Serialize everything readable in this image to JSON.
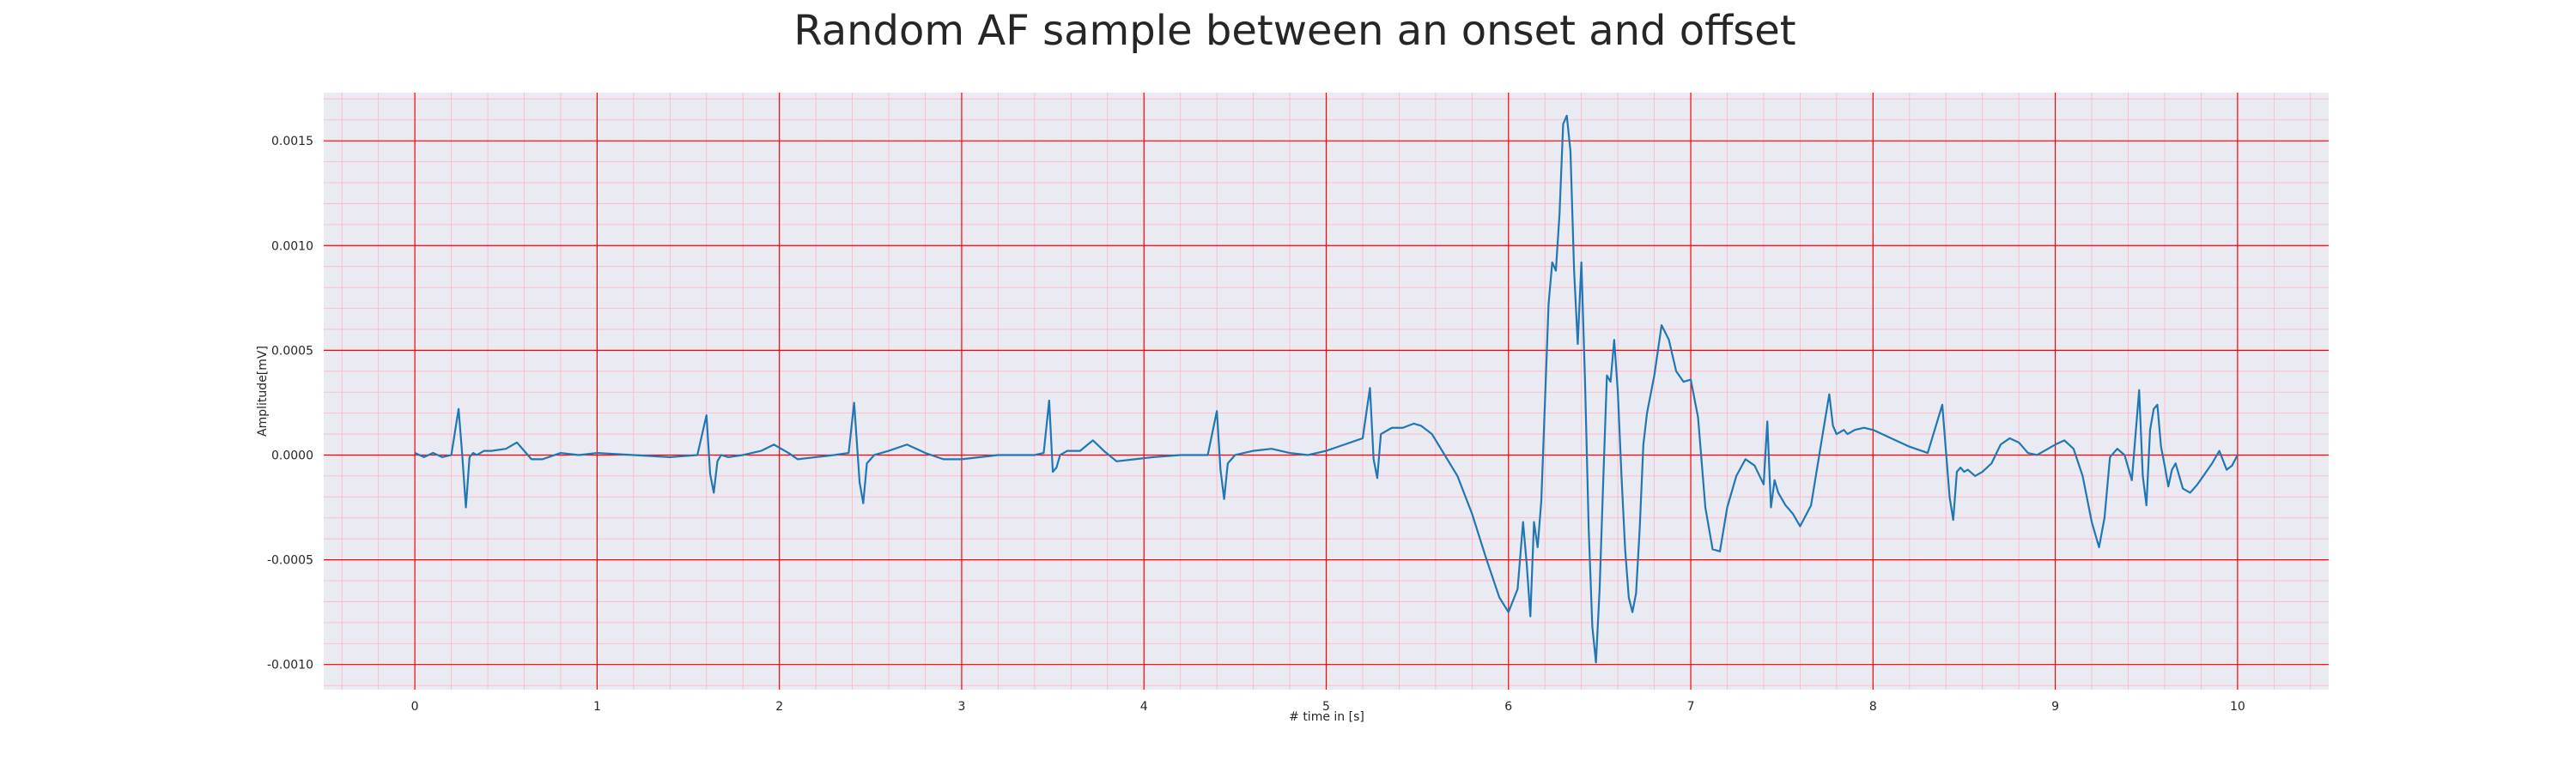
{
  "chart_data": {
    "type": "line",
    "title": "Random AF sample between an onset and offset",
    "xlabel": "# time in [s]",
    "ylabel": "Amplitude[mV]",
    "xlim": [
      -0.5,
      10.5
    ],
    "ylim": [
      -0.00112,
      0.00173
    ],
    "x_major_ticks": [
      0,
      1,
      2,
      3,
      4,
      5,
      6,
      7,
      8,
      9,
      10
    ],
    "x_tick_labels": [
      "0",
      "1",
      "2",
      "3",
      "4",
      "5",
      "6",
      "7",
      "8",
      "9",
      "10"
    ],
    "y_major_ticks": [
      -0.001,
      -0.0005,
      0.0,
      0.0005,
      0.001,
      0.0015
    ],
    "y_tick_labels": [
      "-0.0010",
      "-0.0005",
      "0.0000",
      "0.0005",
      "0.0010",
      "0.0015"
    ],
    "x_minor_step": 0.2,
    "y_minor_step": 0.0001,
    "grid": true,
    "colors": {
      "background": "#eaeaf2",
      "major_grid": "#ff0000",
      "minor_grid": "#ffb6c1",
      "line": "#1f77b4"
    },
    "series": [
      {
        "x": [
          0.0,
          0.05,
          0.1,
          0.15,
          0.2,
          0.24,
          0.26,
          0.28,
          0.3,
          0.32,
          0.34,
          0.38,
          0.42,
          0.5,
          0.56,
          0.6,
          0.64,
          0.7,
          0.8,
          0.9,
          1.0,
          1.2,
          1.4,
          1.55,
          1.6,
          1.62,
          1.64,
          1.66,
          1.68,
          1.72,
          1.8,
          1.9,
          1.97,
          2.05,
          2.1,
          2.2,
          2.3,
          2.38,
          2.41,
          2.44,
          2.46,
          2.48,
          2.52,
          2.6,
          2.7,
          2.8,
          2.9,
          3.0,
          3.2,
          3.4,
          3.45,
          3.48,
          3.5,
          3.52,
          3.54,
          3.58,
          3.65,
          3.72,
          3.78,
          3.85,
          3.95,
          4.05,
          4.2,
          4.35,
          4.4,
          4.42,
          4.44,
          4.46,
          4.5,
          4.6,
          4.7,
          4.8,
          4.9,
          5.0,
          5.1,
          5.2,
          5.24,
          5.26,
          5.28,
          5.3,
          5.36,
          5.42,
          5.48,
          5.52,
          5.58,
          5.65,
          5.72,
          5.8,
          5.88,
          5.95,
          6.0,
          6.05,
          6.08,
          6.1,
          6.12,
          6.14,
          6.16,
          6.18,
          6.2,
          6.22,
          6.24,
          6.26,
          6.28,
          6.3,
          6.32,
          6.34,
          6.36,
          6.38,
          6.4,
          6.42,
          6.44,
          6.46,
          6.48,
          6.5,
          6.52,
          6.54,
          6.56,
          6.58,
          6.6,
          6.62,
          6.64,
          6.66,
          6.68,
          6.7,
          6.72,
          6.74,
          6.76,
          6.8,
          6.84,
          6.88,
          6.92,
          6.96,
          7.0,
          7.04,
          7.08,
          7.12,
          7.16,
          7.2,
          7.25,
          7.3,
          7.35,
          7.4,
          7.42,
          7.44,
          7.46,
          7.48,
          7.52,
          7.56,
          7.6,
          7.66,
          7.72,
          7.76,
          7.78,
          7.8,
          7.82,
          7.84,
          7.86,
          7.9,
          7.95,
          8.0,
          8.1,
          8.2,
          8.3,
          8.38,
          8.42,
          8.44,
          8.46,
          8.48,
          8.5,
          8.52,
          8.56,
          8.6,
          8.65,
          8.7,
          8.75,
          8.8,
          8.85,
          8.9,
          9.0,
          9.05,
          9.1,
          9.15,
          9.2,
          9.24,
          9.27,
          9.3,
          9.34,
          9.38,
          9.42,
          9.46,
          9.48,
          9.5,
          9.52,
          9.54,
          9.56,
          9.58,
          9.6,
          9.62,
          9.64,
          9.66,
          9.7,
          9.74,
          9.78,
          9.82,
          9.86,
          9.9,
          9.94,
          9.97,
          10.0
        ],
        "y": [
          1e-05,
          -1e-05,
          1e-05,
          -1e-05,
          0.0,
          0.00022,
          0.0,
          -0.00025,
          -1e-05,
          1e-05,
          0.0,
          2e-05,
          2e-05,
          3e-05,
          6e-05,
          2e-05,
          -2e-05,
          -2e-05,
          1e-05,
          0.0,
          1e-05,
          0.0,
          -1e-05,
          0.0,
          0.00019,
          -9e-05,
          -0.00018,
          -3e-05,
          0.0,
          -1e-05,
          0.0,
          2e-05,
          5e-05,
          1e-05,
          -2e-05,
          -1e-05,
          0.0,
          1e-05,
          0.00025,
          -0.00013,
          -0.00023,
          -4e-05,
          0.0,
          2e-05,
          5e-05,
          1e-05,
          -2e-05,
          -2e-05,
          0.0,
          0.0,
          1e-05,
          0.00026,
          -8e-05,
          -6e-05,
          0.0,
          2e-05,
          2e-05,
          7e-05,
          2e-05,
          -3e-05,
          -2e-05,
          -1e-05,
          0.0,
          0.0,
          0.00021,
          -7e-05,
          -0.00021,
          -4e-05,
          0.0,
          2e-05,
          3e-05,
          1e-05,
          0.0,
          2e-05,
          5e-05,
          8e-05,
          0.00032,
          -2e-05,
          -0.00011,
          0.0001,
          0.00013,
          0.00013,
          0.00015,
          0.00014,
          0.0001,
          0.0,
          -0.0001,
          -0.00028,
          -0.0005,
          -0.00068,
          -0.00075,
          -0.00064,
          -0.00032,
          -0.00052,
          -0.00077,
          -0.00032,
          -0.00044,
          -0.00022,
          0.00025,
          0.00072,
          0.00092,
          0.00088,
          0.00115,
          0.00158,
          0.00162,
          0.00145,
          0.00088,
          0.00053,
          0.00092,
          0.00035,
          -0.00035,
          -0.00082,
          -0.00099,
          -0.00064,
          -0.00012,
          0.00038,
          0.00035,
          0.00055,
          0.0003,
          -0.0001,
          -0.00045,
          -0.00068,
          -0.00075,
          -0.00066,
          -0.00035,
          5e-05,
          0.0002,
          0.00038,
          0.00062,
          0.00055,
          0.0004,
          0.00035,
          0.00036,
          0.00018,
          -0.00025,
          -0.00045,
          -0.00046,
          -0.00025,
          -0.0001,
          -2e-05,
          -5e-05,
          -0.00014,
          0.00016,
          -0.00025,
          -0.00012,
          -0.00018,
          -0.00024,
          -0.00028,
          -0.00034,
          -0.00024,
          8e-05,
          0.00029,
          0.00014,
          0.0001,
          0.00011,
          0.00012,
          0.0001,
          0.00012,
          0.00013,
          0.00012,
          8e-05,
          4e-05,
          1e-05,
          0.00024,
          -0.0002,
          -0.00031,
          -8e-05,
          -6e-05,
          -8e-05,
          -7e-05,
          -0.0001,
          -8e-05,
          -4e-05,
          5e-05,
          8e-05,
          6e-05,
          1e-05,
          0.0,
          5e-05,
          7e-05,
          3e-05,
          -0.0001,
          -0.00032,
          -0.00044,
          -0.0003,
          -1e-05,
          3e-05,
          0.0,
          -0.00012,
          0.00031,
          -0.0001,
          -0.00024,
          0.00012,
          0.00022,
          0.00024,
          4e-05,
          -5e-05,
          -0.00015,
          -7e-05,
          -4e-05,
          -0.00016,
          -0.00018,
          -0.00014,
          -9e-05,
          -4e-05,
          2e-05,
          -7e-05,
          -5e-05,
          0.0
        ]
      }
    ]
  }
}
